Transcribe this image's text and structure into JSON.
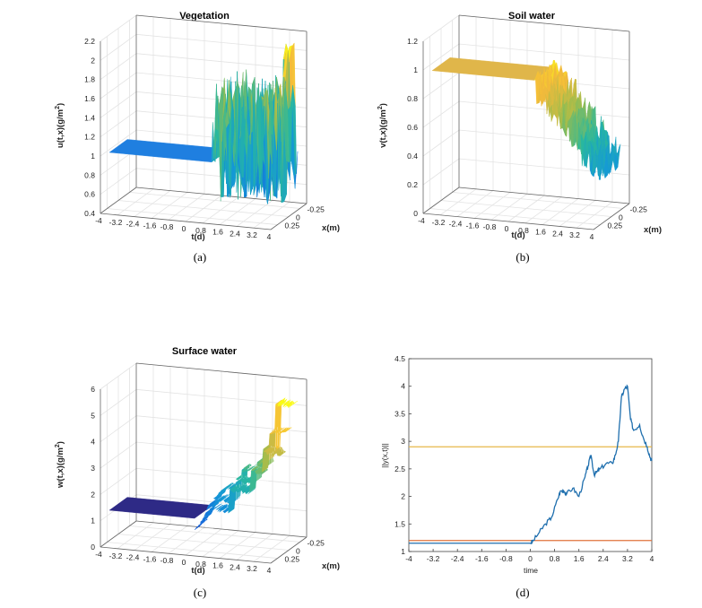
{
  "colors": {
    "vegetation_flat": "#1f7fe0",
    "soil_flat": "#e0b64a",
    "surface_flat": "#2e2a86",
    "norm_line": "#1f6fae",
    "bound_upper": "#e7b74a",
    "bound_lower": "#e0733c"
  },
  "chart_data": [
    {
      "id": "a",
      "type": "surface3d",
      "title": "Vegetation",
      "caption": "(a)",
      "xlabel": "t(d)",
      "ylabel": "x(m)",
      "zlabel": "u(t,x)(g/m",
      "zlabel_sup": "2",
      "zlabel_tail": ")",
      "t_ticks": [
        "-4",
        "-3.2",
        "-2.4",
        "-1.6",
        "-0.8",
        "0",
        "0.8",
        "1.6",
        "2.4",
        "3.2",
        "4"
      ],
      "x_ticks": [
        "0.25",
        "0",
        "-0.25"
      ],
      "z_ticks": [
        "0.4",
        "0.6",
        "0.8",
        "1",
        "1.2",
        "1.4",
        "1.6",
        "1.8",
        "2",
        "2.2"
      ],
      "zlim": [
        0.4,
        2.2
      ],
      "flat_value": 0.97,
      "flat_until_t": 0.8,
      "noisy_range": [
        0.55,
        1.85
      ],
      "peak_value": 2.15,
      "peak_t": 3.7
    },
    {
      "id": "b",
      "type": "surface3d",
      "title": "Soil water",
      "caption": "(b)",
      "xlabel": "t(d)",
      "ylabel": "x(m)",
      "zlabel": "v(t,x)(g/m",
      "zlabel_sup": "2",
      "zlabel_tail": ")",
      "t_ticks": [
        "-4",
        "-3.2",
        "-2.4",
        "-1.6",
        "-0.8",
        "0",
        "0.8",
        "1.6",
        "2.4",
        "3.2",
        "4"
      ],
      "x_ticks": [
        "0.25",
        "0",
        "-0.25"
      ],
      "z_ticks": [
        "0",
        "0.2",
        "0.4",
        "0.6",
        "0.8",
        "1",
        "1.2"
      ],
      "zlim": [
        0,
        1.2
      ],
      "flat_value": 0.95,
      "flat_until_t": 0.8,
      "noisy_range": [
        0.3,
        1.0
      ],
      "trend_end_value": 0.35
    },
    {
      "id": "c",
      "type": "surface3d",
      "title": "Surface water",
      "caption": "(c)",
      "xlabel": "t(d)",
      "ylabel": "x(m)",
      "zlabel": "w(t,x)(g/m",
      "zlabel_sup": "2",
      "zlabel_tail": ")",
      "t_ticks": [
        "-4",
        "-3.2",
        "-2.4",
        "-1.6",
        "-0.8",
        "0",
        "0.8",
        "1.6",
        "2.4",
        "3.2",
        "4"
      ],
      "x_ticks": [
        "0.25",
        "0",
        "-0.25"
      ],
      "z_ticks": [
        "0",
        "1",
        "2",
        "3",
        "4",
        "5",
        "6"
      ],
      "zlim": [
        0,
        6
      ],
      "flat_value": 1.15,
      "flat_until_t": 0.0,
      "steps": [
        {
          "t": 0.8,
          "value": 2.0
        },
        {
          "t": 1.6,
          "value": 2.8
        },
        {
          "t": 2.6,
          "value": 3.6
        },
        {
          "t": 3.2,
          "value": 5.4
        }
      ]
    },
    {
      "id": "d",
      "type": "line",
      "caption": "(d)",
      "xlabel": "time",
      "ylabel": "||y(x,t)||",
      "xlim": [
        -4,
        4
      ],
      "ylim": [
        1,
        4.5
      ],
      "x_ticks": [
        "-4",
        "-3.2",
        "-2.4",
        "-1.6",
        "-0.8",
        "0",
        "0.8",
        "1.6",
        "2.4",
        "3.2",
        "4"
      ],
      "y_ticks": [
        "1",
        "1.5",
        "2",
        "2.5",
        "3",
        "3.5",
        "4",
        "4.5"
      ],
      "series": [
        {
          "name": "norm",
          "x": [
            -4,
            0.0,
            0.1,
            0.3,
            0.5,
            0.7,
            0.9,
            1.0,
            1.1,
            1.2,
            1.4,
            1.6,
            1.8,
            1.9,
            2.0,
            2.1,
            2.2,
            2.3,
            2.5,
            2.7,
            2.8,
            2.9,
            3.0,
            3.1,
            3.2,
            3.3,
            3.4,
            3.6,
            3.7,
            3.85,
            3.95,
            4.0
          ],
          "values": [
            1.15,
            1.15,
            1.2,
            1.35,
            1.5,
            1.62,
            1.95,
            2.1,
            2.1,
            2.05,
            2.15,
            2.0,
            2.35,
            2.55,
            2.75,
            2.4,
            2.45,
            2.5,
            2.6,
            2.6,
            2.75,
            3.0,
            3.8,
            3.95,
            4.0,
            3.4,
            3.2,
            3.3,
            3.1,
            2.9,
            2.7,
            2.65
          ]
        }
      ],
      "hlines": [
        {
          "name": "upper bound",
          "value": 2.9
        },
        {
          "name": "lower bound",
          "value": 1.2
        }
      ]
    }
  ]
}
